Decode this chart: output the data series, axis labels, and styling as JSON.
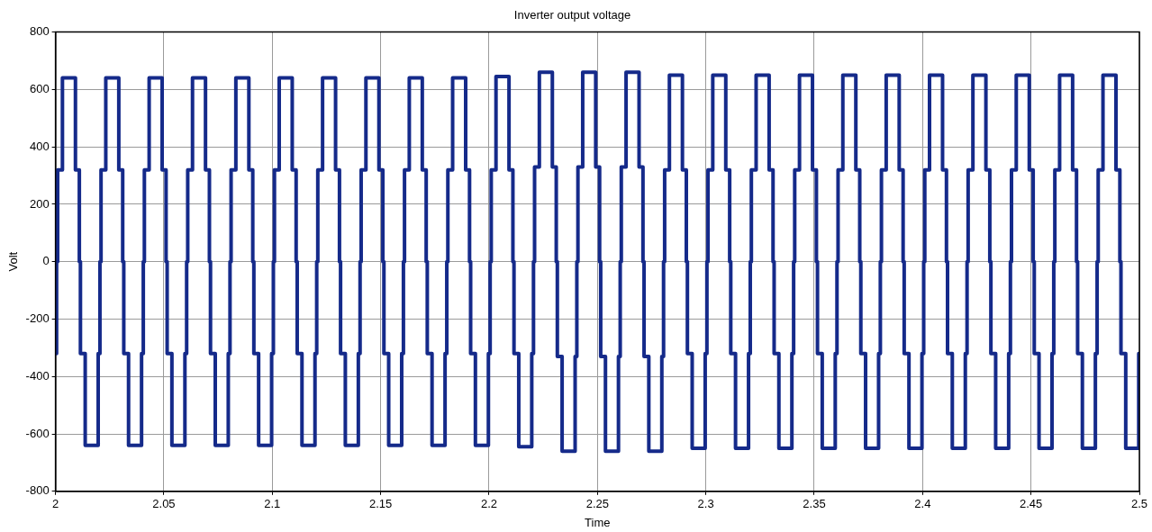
{
  "chart_data": {
    "type": "step",
    "title": "Inverter output voltage",
    "xlabel": "Time",
    "ylabel": "Volt",
    "xlim": [
      2,
      2.5
    ],
    "xticks": [
      2,
      2.05,
      2.1,
      2.15,
      2.2,
      2.25,
      2.3,
      2.35,
      2.4,
      2.45,
      2.5
    ],
    "ylim": [
      -800,
      800
    ],
    "yticks": [
      -800,
      -600,
      -400,
      -200,
      0,
      200,
      400,
      600,
      800
    ],
    "grid": true,
    "legend": false,
    "series": [
      {
        "color": "#152a8a",
        "x": [
          2,
          2.0005,
          2.001,
          2.0032,
          2.0092,
          2.011,
          2.0115,
          2.0137,
          2.0197,
          2.0205,
          2.021,
          2.0232,
          2.0292,
          2.031,
          2.0315,
          2.0337,
          2.0397,
          2.0405,
          2.041,
          2.0432,
          2.0492,
          2.051,
          2.0515,
          2.0537,
          2.0597,
          2.0605,
          2.061,
          2.0632,
          2.0692,
          2.071,
          2.0715,
          2.0737,
          2.0797,
          2.0805,
          2.081,
          2.0832,
          2.0892,
          2.091,
          2.0915,
          2.0937,
          2.0997,
          2.1005,
          2.101,
          2.1032,
          2.1092,
          2.111,
          2.1115,
          2.1137,
          2.1197,
          2.1205,
          2.121,
          2.1232,
          2.1292,
          2.131,
          2.1315,
          2.1337,
          2.1397,
          2.1405,
          2.141,
          2.1432,
          2.1492,
          2.151,
          2.1515,
          2.1537,
          2.1597,
          2.1605,
          2.161,
          2.1632,
          2.1692,
          2.171,
          2.1715,
          2.1737,
          2.1797,
          2.1805,
          2.181,
          2.1832,
          2.1892,
          2.191,
          2.1915,
          2.1937,
          2.1997,
          2.2005,
          2.201,
          2.2032,
          2.2092,
          2.211,
          2.2115,
          2.2137,
          2.2197,
          2.2205,
          2.221,
          2.2232,
          2.2292,
          2.231,
          2.2315,
          2.2337,
          2.2397,
          2.2405,
          2.241,
          2.2432,
          2.2492,
          2.251,
          2.2515,
          2.2537,
          2.2597,
          2.2605,
          2.261,
          2.2632,
          2.2692,
          2.271,
          2.2715,
          2.2737,
          2.2797,
          2.2805,
          2.281,
          2.2832,
          2.2892,
          2.291,
          2.2915,
          2.2937,
          2.2997,
          2.3005,
          2.301,
          2.3032,
          2.3092,
          2.311,
          2.3115,
          2.3137,
          2.3197,
          2.3205,
          2.321,
          2.3232,
          2.3292,
          2.331,
          2.3315,
          2.3337,
          2.3397,
          2.3405,
          2.341,
          2.3432,
          2.3492,
          2.351,
          2.3515,
          2.3537,
          2.3597,
          2.3605,
          2.361,
          2.3632,
          2.3692,
          2.371,
          2.3715,
          2.3737,
          2.3797,
          2.3805,
          2.381,
          2.3832,
          2.3892,
          2.391,
          2.3915,
          2.3937,
          2.3997,
          2.4005,
          2.401,
          2.4032,
          2.4092,
          2.411,
          2.4115,
          2.4137,
          2.4197,
          2.4205,
          2.421,
          2.4232,
          2.4292,
          2.431,
          2.4315,
          2.4337,
          2.4397,
          2.4405,
          2.441,
          2.4432,
          2.4492,
          2.451,
          2.4515,
          2.4537,
          2.4597,
          2.4605,
          2.461,
          2.4632,
          2.4692,
          2.471,
          2.4715,
          2.4737,
          2.4797,
          2.4805,
          2.481,
          2.4832,
          2.4892,
          2.491,
          2.4915,
          2.4937,
          2.4997,
          2.5
        ],
        "values": [
          -320,
          0,
          320,
          640,
          320,
          0,
          -320,
          -640,
          -320,
          0,
          320,
          640,
          320,
          0,
          -320,
          -640,
          -320,
          0,
          320,
          640,
          320,
          0,
          -320,
          -640,
          -320,
          0,
          320,
          640,
          320,
          0,
          -320,
          -640,
          -320,
          0,
          320,
          640,
          320,
          0,
          -320,
          -640,
          -320,
          0,
          320,
          640,
          320,
          0,
          -320,
          -640,
          -320,
          0,
          320,
          640,
          320,
          0,
          -320,
          -640,
          -320,
          0,
          320,
          640,
          320,
          0,
          -320,
          -640,
          -320,
          0,
          320,
          640,
          320,
          0,
          -320,
          -640,
          -320,
          0,
          320,
          640,
          320,
          0,
          -320,
          -640,
          -320,
          0,
          320,
          645,
          320,
          0,
          -320,
          -645,
          -320,
          0,
          330,
          660,
          330,
          0,
          -330,
          -660,
          -330,
          0,
          330,
          660,
          330,
          0,
          -330,
          -660,
          -330,
          0,
          330,
          660,
          330,
          0,
          -330,
          -660,
          -330,
          0,
          320,
          650,
          320,
          0,
          -320,
          -650,
          -320,
          0,
          320,
          650,
          320,
          0,
          -320,
          -650,
          -320,
          0,
          320,
          650,
          320,
          0,
          -320,
          -650,
          -320,
          0,
          320,
          650,
          320,
          0,
          -320,
          -650,
          -320,
          0,
          320,
          650,
          320,
          0,
          -320,
          -650,
          -320,
          0,
          320,
          650,
          320,
          0,
          -320,
          -650,
          -320,
          0,
          320,
          650,
          320,
          0,
          -320,
          -650,
          -320,
          0,
          320,
          650,
          320,
          0,
          -320,
          -650,
          -320,
          0,
          320,
          650,
          320,
          0,
          -320,
          -650,
          -320,
          0,
          320,
          650,
          320,
          0,
          -320,
          -650,
          -320,
          0,
          320,
          650,
          320,
          0,
          -320,
          -650,
          -320,
          -320
        ]
      }
    ]
  }
}
